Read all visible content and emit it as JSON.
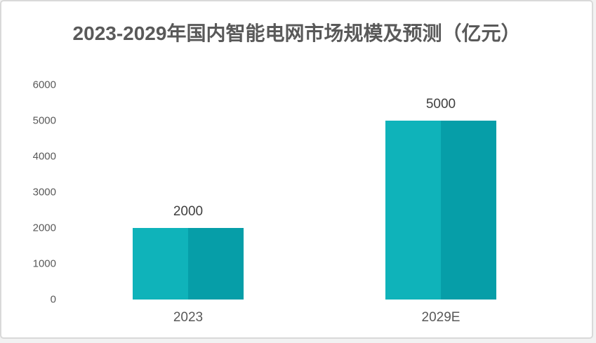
{
  "page": {
    "background": "#ffffff",
    "border_color": "#d9d9d9"
  },
  "header": {
    "title": "2023-2029年国内智能电网市场规模及预测（亿元）",
    "title_color": "#595959"
  },
  "chart_data": {
    "type": "bar",
    "title": "2023-2029年国内智能电网市场规模及预测（亿元）",
    "categories": [
      "2023",
      "2029E"
    ],
    "values": [
      2000,
      5000
    ],
    "data_labels": [
      "2000",
      "5000"
    ],
    "unit": "亿元",
    "xlabel": "",
    "ylabel": "",
    "ylim": [
      0,
      6000
    ],
    "yticks": [
      0,
      1000,
      2000,
      3000,
      4000,
      5000,
      6000
    ],
    "grid": false,
    "legend_position": "none",
    "bar_fill_left": "#0fb3ba",
    "bar_fill_right": "#069ea8",
    "axis_label_color": "#595959",
    "data_label_color": "#3f3f3f"
  }
}
